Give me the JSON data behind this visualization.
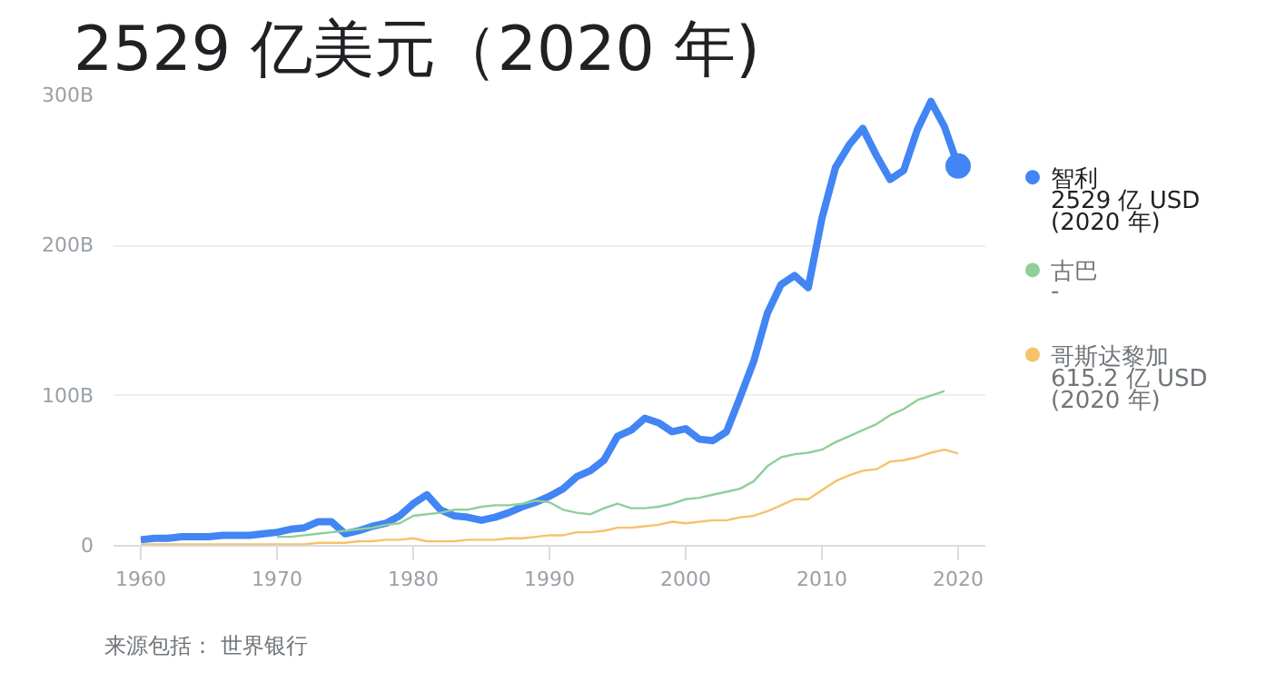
{
  "chart_data": {
    "type": "line",
    "title": "2529 亿美元（2020 年)",
    "x": [
      1960,
      1961,
      1962,
      1963,
      1964,
      1965,
      1966,
      1967,
      1968,
      1969,
      1970,
      1971,
      1972,
      1973,
      1974,
      1975,
      1976,
      1977,
      1978,
      1979,
      1980,
      1981,
      1982,
      1983,
      1984,
      1985,
      1986,
      1987,
      1988,
      1989,
      1990,
      1991,
      1992,
      1993,
      1994,
      1995,
      1996,
      1997,
      1998,
      1999,
      2000,
      2001,
      2002,
      2003,
      2004,
      2005,
      2006,
      2007,
      2008,
      2009,
      2010,
      2011,
      2012,
      2013,
      2014,
      2015,
      2016,
      2017,
      2018,
      2019,
      2020
    ],
    "series": [
      {
        "name": "智利",
        "color": "#4285f4",
        "values": [
          4,
          5,
          5,
          6,
          6,
          6,
          7,
          7,
          7,
          8,
          9,
          11,
          12,
          16,
          16,
          8,
          10,
          13,
          15,
          20,
          28,
          34,
          24,
          20,
          19,
          17,
          19,
          22,
          26,
          29,
          33,
          38,
          46,
          50,
          57,
          73,
          77,
          85,
          82,
          76,
          78,
          71,
          70,
          76,
          99,
          123,
          155,
          174,
          180,
          172,
          218,
          252,
          267,
          278,
          260,
          244,
          250,
          277,
          296,
          279,
          253
        ]
      },
      {
        "name": "古巴",
        "color": "#8fcf9a",
        "values": [
          null,
          null,
          null,
          null,
          null,
          null,
          null,
          null,
          null,
          null,
          6,
          6,
          7,
          8,
          9,
          10,
          11,
          12,
          14,
          15,
          20,
          21,
          22,
          24,
          24,
          26,
          27,
          27,
          28,
          30,
          29,
          24,
          22,
          21,
          25,
          28,
          25,
          25,
          26,
          28,
          31,
          32,
          34,
          36,
          38,
          43,
          53,
          59,
          61,
          62,
          64,
          69,
          73,
          77,
          81,
          87,
          91,
          97,
          100,
          103,
          null
        ]
      },
      {
        "name": "哥斯达黎加",
        "color": "#f6c26b",
        "values": [
          1,
          1,
          1,
          1,
          1,
          1,
          1,
          1,
          1,
          1,
          1,
          1,
          1,
          2,
          2,
          2,
          3,
          3,
          4,
          4,
          5,
          3,
          3,
          3,
          4,
          4,
          4,
          5,
          5,
          6,
          7,
          7,
          9,
          9,
          10,
          12,
          12,
          13,
          14,
          16,
          15,
          16,
          17,
          17,
          19,
          20,
          23,
          27,
          31,
          31,
          37,
          43,
          47,
          50,
          51,
          56,
          57,
          59,
          62,
          64,
          61.52
        ]
      },
      {
        "type": "scatter",
        "color": "#4285f4",
        "x": [
          2020
        ],
        "values": [
          252.9
        ]
      }
    ],
    "xlim": [
      1958,
      2022
    ],
    "xticks": [
      1960,
      1970,
      1980,
      1990,
      2000,
      2010,
      2020
    ],
    "ylim": [
      0,
      300
    ],
    "yticks": [
      {
        "value": 0,
        "label": "0"
      },
      {
        "value": 100,
        "label": "100B"
      },
      {
        "value": 200,
        "label": "200B"
      },
      {
        "value": 300,
        "label": "300B"
      }
    ],
    "grid": "y",
    "legend": "right",
    "annotations": [
      "2529 亿 USD\n(2020 年)",
      "-",
      "615.2 亿 USD\n(2020 年)",
      "来源包括：  世界银行"
    ]
  }
}
